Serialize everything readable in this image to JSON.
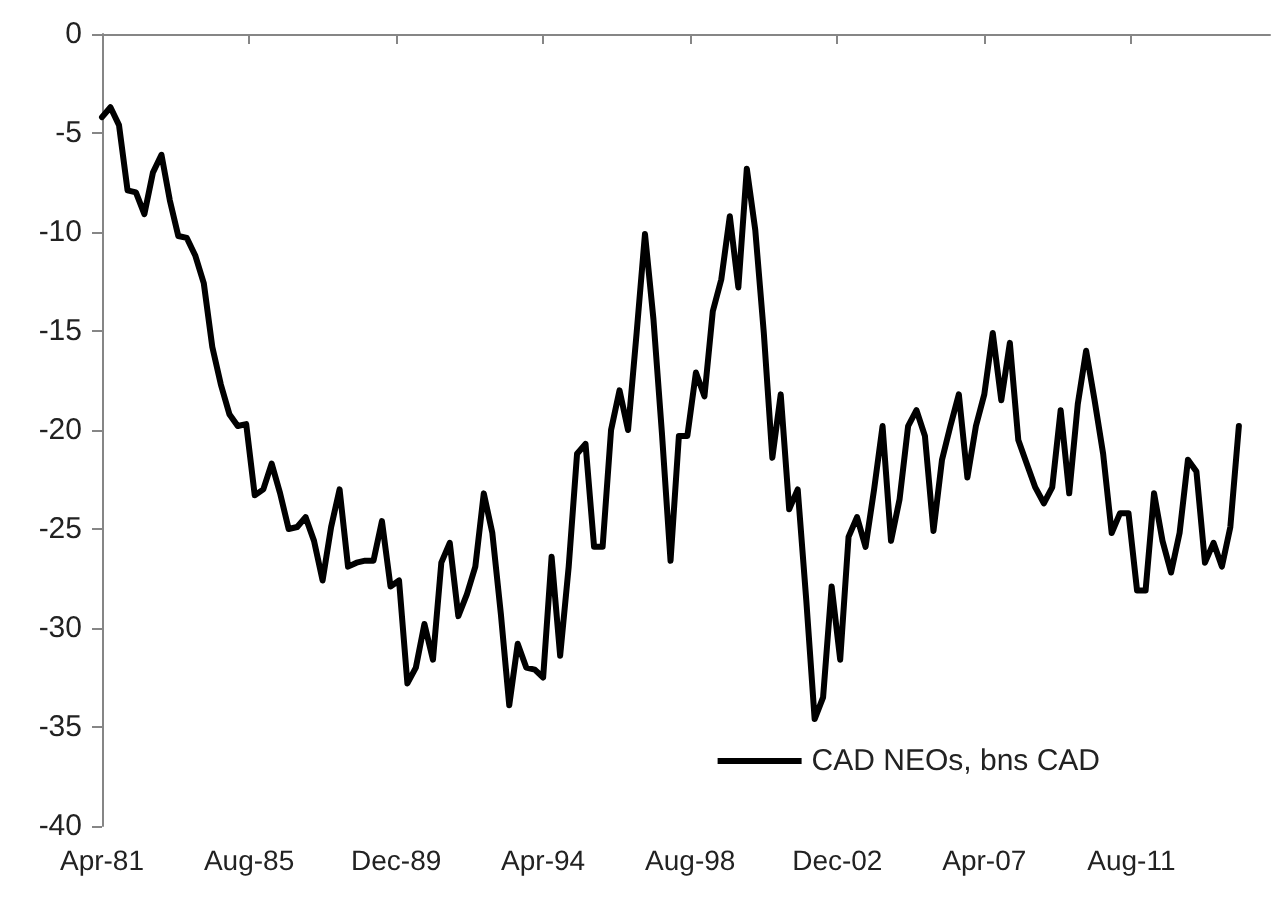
{
  "chart_data": {
    "type": "line",
    "x": [
      "1981-04",
      "1981-07",
      "1981-10",
      "1982-01",
      "1982-04",
      "1982-07",
      "1982-10",
      "1983-01",
      "1983-04",
      "1983-07",
      "1983-10",
      "1984-01",
      "1984-04",
      "1984-07",
      "1984-10",
      "1985-01",
      "1985-04",
      "1985-07",
      "1985-10",
      "1986-01",
      "1986-04",
      "1986-07",
      "1986-10",
      "1987-01",
      "1987-04",
      "1987-07",
      "1987-10",
      "1988-01",
      "1988-04",
      "1988-07",
      "1988-10",
      "1989-01",
      "1989-04",
      "1989-07",
      "1989-10",
      "1990-01",
      "1990-04",
      "1990-07",
      "1990-10",
      "1991-01",
      "1991-04",
      "1991-07",
      "1991-10",
      "1992-01",
      "1992-04",
      "1992-07",
      "1992-10",
      "1993-01",
      "1993-04",
      "1993-07",
      "1993-10",
      "1994-01",
      "1994-04",
      "1994-07",
      "1994-10",
      "1995-01",
      "1995-04",
      "1995-07",
      "1995-10",
      "1996-01",
      "1996-04",
      "1996-07",
      "1996-10",
      "1997-01",
      "1997-04",
      "1997-07",
      "1997-10",
      "1998-01",
      "1998-04",
      "1998-07",
      "1998-10",
      "1999-01",
      "1999-04",
      "1999-07",
      "1999-10",
      "2000-01",
      "2000-04",
      "2000-07",
      "2000-10",
      "2001-01",
      "2001-04",
      "2001-07",
      "2001-10",
      "2002-01",
      "2002-04",
      "2002-07",
      "2002-10",
      "2003-01",
      "2003-04",
      "2003-07",
      "2003-10",
      "2004-01",
      "2004-04",
      "2004-07",
      "2004-10",
      "2005-01",
      "2005-04",
      "2005-07",
      "2005-10",
      "2006-01",
      "2006-04",
      "2006-07",
      "2006-10",
      "2007-01",
      "2007-04",
      "2007-07",
      "2007-10",
      "2008-01",
      "2008-04",
      "2008-07",
      "2008-10",
      "2009-01",
      "2009-04",
      "2009-07",
      "2009-10",
      "2010-01",
      "2010-04",
      "2010-07",
      "2010-10",
      "2011-01",
      "2011-04",
      "2011-07",
      "2011-10",
      "2012-01",
      "2012-04",
      "2012-07",
      "2012-10",
      "2013-01",
      "2013-04",
      "2013-07",
      "2013-10",
      "2014-01",
      "2014-04",
      "2014-07",
      "2014-10"
    ],
    "series": [
      {
        "name": "CAD NEOs, bns CAD",
        "color": "#000000",
        "values": [
          -4.2,
          -3.7,
          -4.6,
          -7.9,
          -8.0,
          -9.1,
          -7.0,
          -6.1,
          -8.4,
          -10.2,
          -10.3,
          -11.2,
          -12.6,
          -15.8,
          -17.7,
          -19.2,
          -19.8,
          -19.7,
          -23.3,
          -23.0,
          -21.7,
          -23.2,
          -25.0,
          -24.9,
          -24.4,
          -25.6,
          -27.6,
          -24.9,
          -23.0,
          -26.9,
          -26.7,
          -26.6,
          -26.6,
          -24.6,
          -27.9,
          -27.6,
          -32.8,
          -32.0,
          -29.8,
          -31.6,
          -26.7,
          -25.7,
          -29.4,
          -28.3,
          -26.9,
          -23.2,
          -25.2,
          -29.3,
          -33.9,
          -30.8,
          -32.0,
          -32.1,
          -32.5,
          -26.4,
          -31.4,
          -26.9,
          -21.2,
          -20.7,
          -25.9,
          -25.9,
          -20.0,
          -18.0,
          -20.0,
          -15.1,
          -10.1,
          -14.4,
          -20.2,
          -26.6,
          -20.3,
          -20.3,
          -17.1,
          -18.3,
          -14.0,
          -12.4,
          -9.2,
          -12.8,
          -6.8,
          -9.9,
          -15.1,
          -21.4,
          -18.2,
          -24.0,
          -23.0,
          -28.6,
          -34.6,
          -33.5,
          -27.9,
          -31.6,
          -25.4,
          -24.4,
          -25.9,
          -23.0,
          -19.8,
          -25.6,
          -23.5,
          -19.8,
          -19.0,
          -20.3,
          -25.1,
          -21.5,
          -19.8,
          -18.2,
          -22.4,
          -19.8,
          -18.2,
          -15.1,
          -18.5,
          -15.6,
          -20.5,
          -21.7,
          -22.9,
          -23.7,
          -22.9,
          -19.0,
          -23.2,
          -18.7,
          -16.0,
          -18.5,
          -21.2,
          -25.2,
          -24.2,
          -24.2,
          -28.1,
          -28.1,
          -23.2,
          -25.6,
          -27.2,
          -25.2,
          -21.5,
          -22.1,
          -26.7,
          -25.7,
          -26.9,
          -24.9,
          -19.8
        ]
      }
    ],
    "xlim": [
      "1981-04",
      "2015-09"
    ],
    "xticks": [
      {
        "value": "1981-04",
        "label": "Apr-81"
      },
      {
        "value": "1985-08",
        "label": "Aug-85"
      },
      {
        "value": "1989-12",
        "label": "Dec-89"
      },
      {
        "value": "1994-04",
        "label": "Apr-94"
      },
      {
        "value": "1998-08",
        "label": "Aug-98"
      },
      {
        "value": "2002-12",
        "label": "Dec-02"
      },
      {
        "value": "2007-04",
        "label": "Apr-07"
      },
      {
        "value": "2011-08",
        "label": "Aug-11"
      }
    ],
    "ylim": [
      -40,
      0
    ],
    "yticks": [
      -40,
      -35,
      -30,
      -25,
      -20,
      -15,
      -10,
      -5,
      0
    ],
    "legend": "bottom right",
    "marker": "none",
    "line_style": "solid",
    "grid": false
  }
}
